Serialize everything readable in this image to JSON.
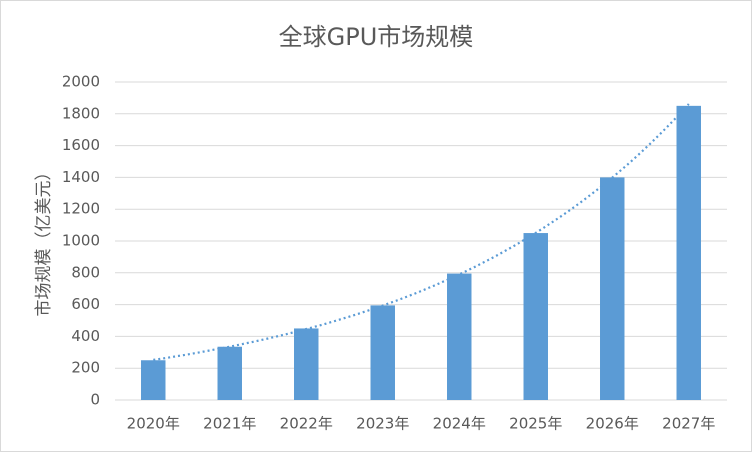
{
  "chart_data": {
    "type": "bar",
    "title": "全球GPU市场规模",
    "y_label": "市场规模（亿美元）",
    "categories": [
      "2020年",
      "2021年",
      "2022年",
      "2023年",
      "2024年",
      "2025年",
      "2026年",
      "2027年"
    ],
    "values": [
      250,
      335,
      450,
      595,
      795,
      1050,
      1400,
      1850
    ],
    "color": "#5b9bd5",
    "ylim": [
      0,
      2000
    ],
    "yticks": [
      0,
      200,
      400,
      600,
      800,
      1000,
      1200,
      1400,
      1600,
      1800,
      2000
    ],
    "grid": true,
    "trendline": "exponential"
  }
}
